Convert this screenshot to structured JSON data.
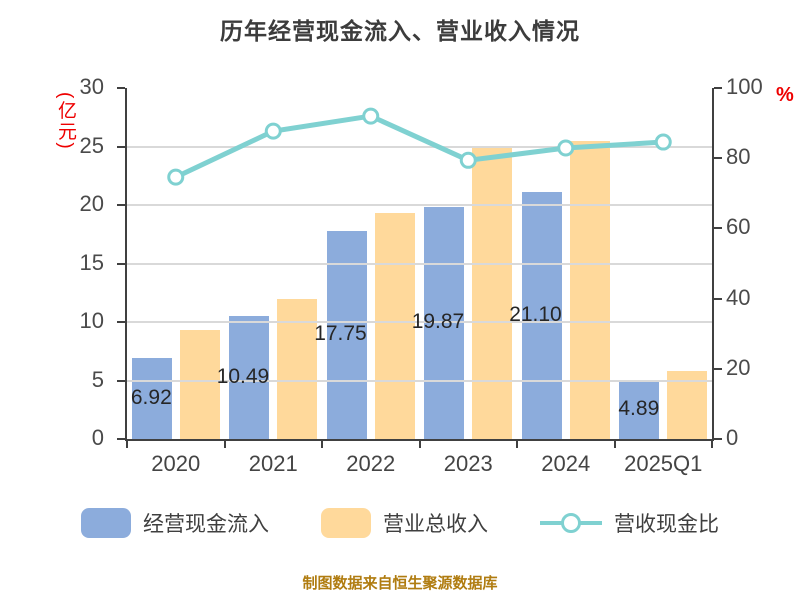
{
  "title": "历年经营现金流入、营业收入情况",
  "caption": "制图数据来自恒生聚源数据库",
  "left_axis": {
    "unit": "(亿元)",
    "min": 0,
    "max": 30,
    "tick_step": 5,
    "ticks": [
      "0",
      "5",
      "10",
      "15",
      "20",
      "25",
      "30"
    ]
  },
  "right_axis": {
    "unit": "%",
    "min": 0,
    "max": 100,
    "tick_step": 20,
    "ticks": [
      "0",
      "20",
      "40",
      "60",
      "80",
      "100"
    ]
  },
  "legend": {
    "items": [
      {
        "label": "经营现金流入",
        "type": "bar",
        "color": "#8cacdc"
      },
      {
        "label": "营业总收入",
        "type": "bar",
        "color": "#ffd99b"
      },
      {
        "label": "营收现金比",
        "type": "line",
        "color": "#7fd1d1"
      }
    ]
  },
  "colors": {
    "cash_bar": "#8cacdc",
    "revenue_bar": "#ffd99b",
    "ratio_line": "#7fd1d1",
    "gridline": "#d9d9d9",
    "axis": "#404040",
    "unit_text": "#ee0000",
    "caption_text": "#b07c10"
  },
  "chart_data": {
    "type": "bar",
    "categories": [
      "2020",
      "2021",
      "2022",
      "2023",
      "2024",
      "2025Q1"
    ],
    "series": [
      {
        "name": "经营现金流入",
        "type": "bar",
        "axis": "left",
        "color": "#8cacdc",
        "values": [
          6.92,
          10.49,
          17.75,
          19.87,
          21.1,
          4.89
        ],
        "data_labels": [
          "6.92",
          "10.49",
          "17.75",
          "19.87",
          "21.10",
          "4.89"
        ]
      },
      {
        "name": "营业总收入",
        "type": "bar",
        "axis": "left",
        "color": "#ffd99b",
        "values": [
          9.28,
          11.96,
          19.29,
          25.02,
          25.45,
          5.78
        ]
      },
      {
        "name": "营收现金比",
        "type": "line",
        "axis": "right",
        "color": "#7fd1d1",
        "marker": "circle",
        "values": [
          74.6,
          87.7,
          92.0,
          79.4,
          82.9,
          84.6
        ]
      }
    ],
    "title": "历年经营现金流入、营业收入情况",
    "xlabel": "",
    "ylabel_left": "(亿元)",
    "ylabel_right": "%",
    "ylim_left": [
      0,
      30
    ],
    "ylim_right": [
      0,
      100
    ],
    "grid": "horizontal",
    "legend_position": "bottom"
  }
}
